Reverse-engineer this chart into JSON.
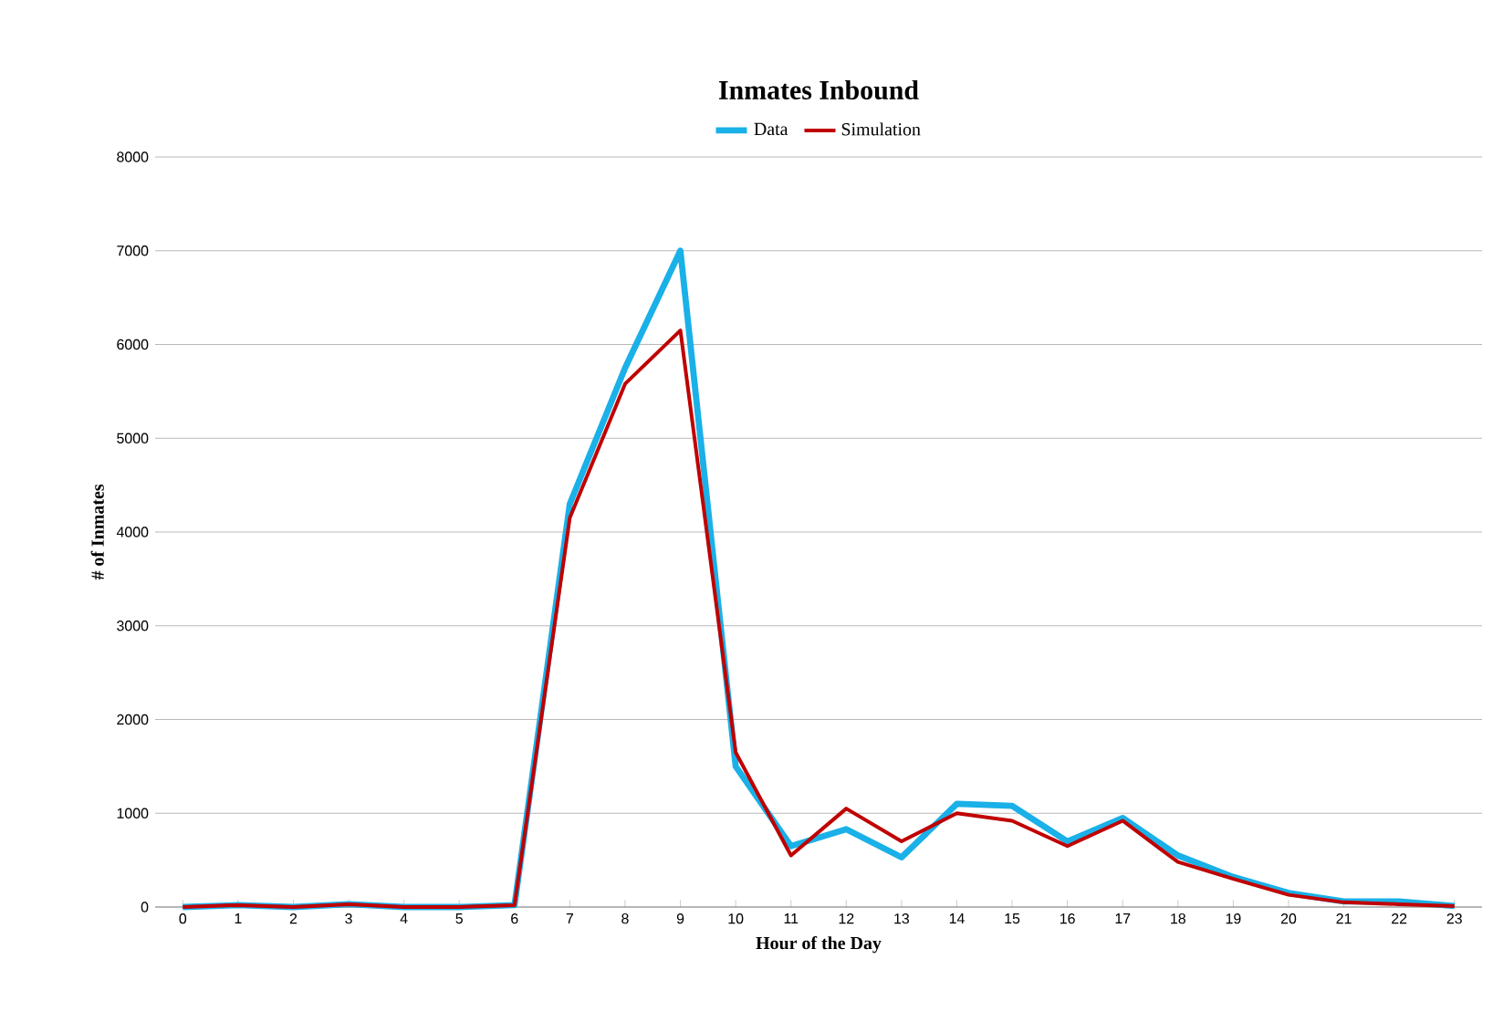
{
  "chart_data": {
    "type": "line",
    "title": "Inmates Inbound",
    "xlabel": "Hour of the Day",
    "ylabel": "# of Inmates",
    "categories": [
      "0",
      "1",
      "2",
      "3",
      "4",
      "5",
      "6",
      "7",
      "8",
      "9",
      "10",
      "11",
      "12",
      "13",
      "14",
      "15",
      "16",
      "17",
      "18",
      "19",
      "20",
      "21",
      "22",
      "23"
    ],
    "series": [
      {
        "name": "Data",
        "color": "#1ab0e8",
        "values": [
          0,
          20,
          0,
          30,
          0,
          0,
          20,
          4300,
          5750,
          7000,
          1500,
          650,
          830,
          530,
          1100,
          1080,
          700,
          950,
          550,
          320,
          150,
          60,
          60,
          10
        ]
      },
      {
        "name": "Simulation",
        "color": "#c00000",
        "values": [
          0,
          20,
          0,
          30,
          0,
          0,
          20,
          4150,
          5580,
          6150,
          1650,
          550,
          1050,
          700,
          1000,
          920,
          650,
          920,
          480,
          300,
          130,
          50,
          30,
          10
        ]
      }
    ],
    "ylim": [
      0,
      8000
    ],
    "yticks": [
      0,
      1000,
      2000,
      3000,
      4000,
      5000,
      6000,
      7000,
      8000
    ],
    "grid": "y",
    "legend": "top",
    "marker": "none",
    "line_style": "solid"
  }
}
